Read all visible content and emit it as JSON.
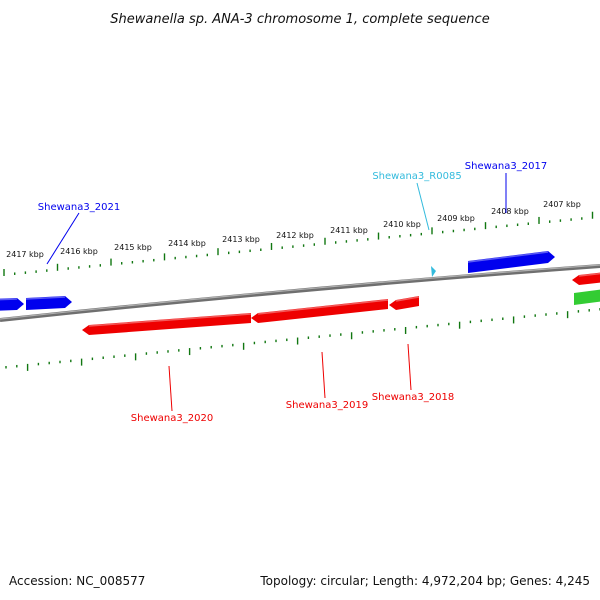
{
  "title": "Shewanella sp. ANA-3 chromosome 1, complete sequence",
  "footer": {
    "accession": "Accession: NC_008577",
    "summary": "Topology: circular; Length: 4,972,204 bp; Genes: 4,245"
  },
  "colors": {
    "forward_gene": "#0000ee",
    "reverse_gene": "#ee0000",
    "rna_gene": "#33bbdd",
    "other_gene": "#33cc33",
    "ticks": "#117711",
    "backbone": "#888888"
  },
  "scale_labels": [
    "2417 kbp",
    "2416 kbp",
    "2415 kbp",
    "2414 kbp",
    "2413 kbp",
    "2412 kbp",
    "2411 kbp",
    "2410 kbp",
    "2409 kbp",
    "2408 kbp",
    "2407 kbp"
  ],
  "genes": [
    {
      "id": "g2021",
      "label": "Shewana3_2021",
      "color": "forward_gene"
    },
    {
      "id": "gR0085",
      "label": "Shewana3_R0085",
      "color": "rna_gene"
    },
    {
      "id": "g2017",
      "label": "Shewana3_2017",
      "color": "forward_gene"
    },
    {
      "id": "g2020",
      "label": "Shewana3_2020",
      "color": "reverse_gene"
    },
    {
      "id": "g2019",
      "label": "Shewana3_2019",
      "color": "reverse_gene"
    },
    {
      "id": "g2018",
      "label": "Shewana3_2018",
      "color": "reverse_gene"
    }
  ]
}
